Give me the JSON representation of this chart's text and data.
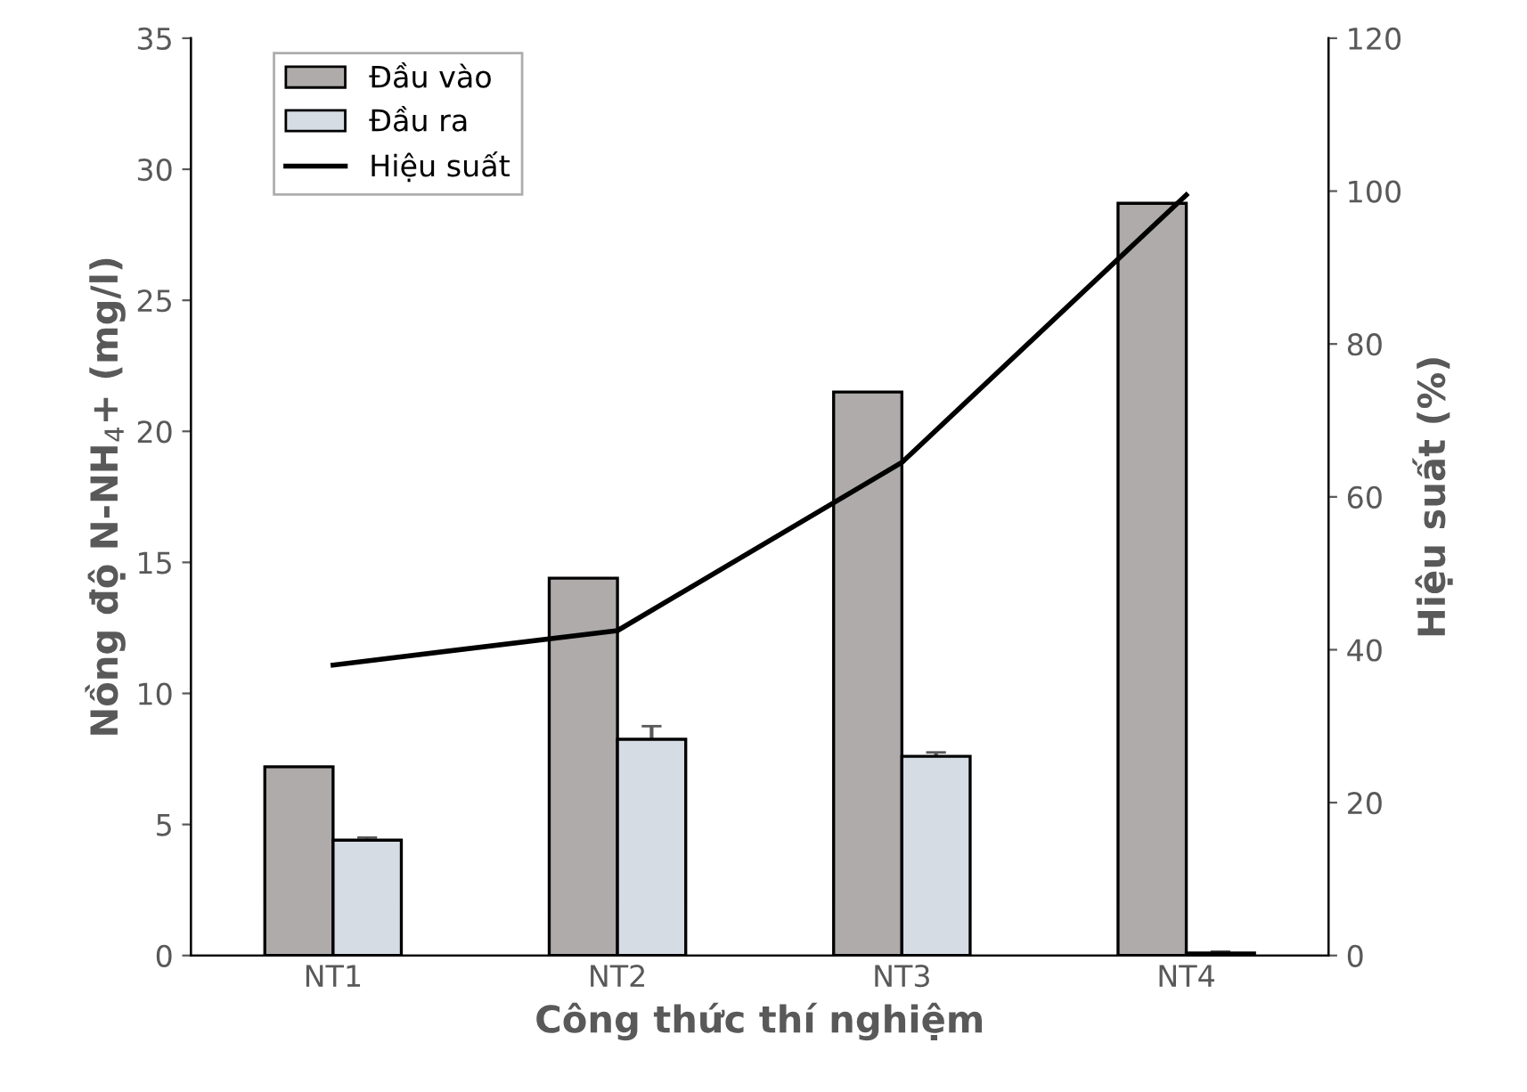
{
  "chart_data": {
    "type": "bar",
    "xlabel": "Công thức thí nghiệm",
    "ylabel": "Nồng độ N-NH$_{4}$+ (mg/l)",
    "y2label": "Hiệu suất (%)",
    "categories": [
      "NT1",
      "NT2",
      "NT3",
      "NT4"
    ],
    "series": [
      {
        "name": "Đầu vào",
        "color": "#afabab",
        "values": [
          7.2,
          14.4,
          21.5,
          28.7
        ]
      },
      {
        "name": "Đầu ra",
        "color": "#d6dce4",
        "values": [
          4.4,
          8.25,
          7.6,
          0.1
        ],
        "errors": [
          0.1,
          0.5,
          0.15,
          0.05
        ]
      },
      {
        "name": "Hiệu suất",
        "type": "line",
        "axis": "y2",
        "color": "#000000",
        "values": [
          38,
          42.5,
          64.5,
          99.5
        ]
      }
    ],
    "ylim": [
      0,
      35
    ],
    "yticks": [
      0,
      5,
      10,
      15,
      20,
      25,
      30,
      35
    ],
    "y2lim": [
      0,
      120
    ],
    "y2ticks": [
      0,
      20,
      40,
      60,
      80,
      100,
      120
    ],
    "grid": false,
    "legend": "top left"
  }
}
